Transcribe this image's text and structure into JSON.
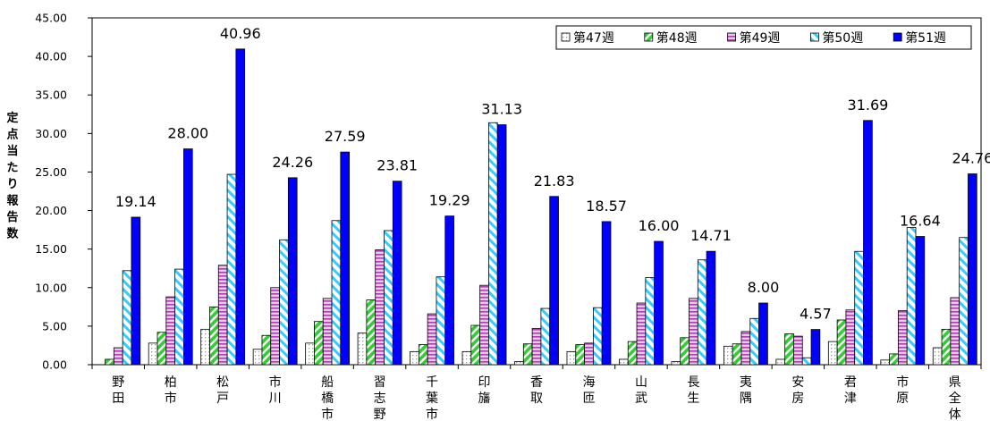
{
  "chart_data": {
    "type": "bar",
    "ylabel": "定点当たり報告数",
    "ylim": [
      0,
      45
    ],
    "ytick_step": 5,
    "ytick_labels": [
      "0.00",
      "5.00",
      "10.00",
      "15.00",
      "20.00",
      "25.00",
      "30.00",
      "35.00",
      "40.00",
      "45.00"
    ],
    "legend_position": "top-right",
    "categories": [
      "野田",
      "柏市",
      "松戸",
      "市川",
      "船橋市",
      "習志野",
      "千葉市",
      "印旛",
      "香取",
      "海匝",
      "山武",
      "長生",
      "夷隅",
      "安房",
      "君津",
      "市原",
      "県全体"
    ],
    "series": [
      {
        "name": "第47週",
        "color": "#ffffff",
        "pattern": "dots",
        "values": [
          0.0,
          2.8,
          4.6,
          2.0,
          2.8,
          4.1,
          1.7,
          1.7,
          0.4,
          1.7,
          0.7,
          0.4,
          2.4,
          0.7,
          3.0,
          0.6,
          2.2
        ]
      },
      {
        "name": "第48週",
        "color": "#33cc33",
        "pattern": "diag-green",
        "values": [
          0.7,
          4.2,
          7.5,
          3.8,
          5.6,
          8.4,
          2.6,
          5.1,
          2.7,
          2.6,
          3.0,
          3.5,
          2.7,
          4.0,
          5.8,
          1.4,
          4.6
        ]
      },
      {
        "name": "第49週",
        "color": "#cc66cc",
        "pattern": "hlines-purple",
        "values": [
          2.2,
          8.8,
          12.9,
          10.0,
          8.6,
          14.9,
          6.6,
          10.3,
          4.7,
          2.8,
          8.0,
          8.6,
          4.3,
          3.7,
          7.1,
          7.0,
          8.7
        ]
      },
      {
        "name": "第50週",
        "color": "#33ccff",
        "pattern": "diag-cyan",
        "values": [
          12.2,
          12.4,
          24.7,
          16.2,
          18.7,
          17.4,
          11.4,
          31.4,
          7.3,
          7.4,
          11.3,
          13.6,
          6.0,
          0.9,
          14.7,
          17.8,
          16.5
        ]
      },
      {
        "name": "第51週",
        "color": "#0000ff",
        "pattern": "solid",
        "values": [
          19.14,
          28.0,
          40.96,
          24.26,
          27.59,
          23.81,
          19.29,
          31.13,
          21.83,
          18.57,
          16.0,
          14.71,
          8.0,
          4.57,
          31.69,
          16.64,
          24.76
        ]
      }
    ],
    "data_labels": [
      "19.14",
      "28.00",
      "40.96",
      "24.26",
      "27.59",
      "23.81",
      "19.29",
      "31.13",
      "21.83",
      "18.57",
      "16.00",
      "14.71",
      "8.00",
      "4.57",
      "31.69",
      "16.64",
      "24.76"
    ]
  }
}
